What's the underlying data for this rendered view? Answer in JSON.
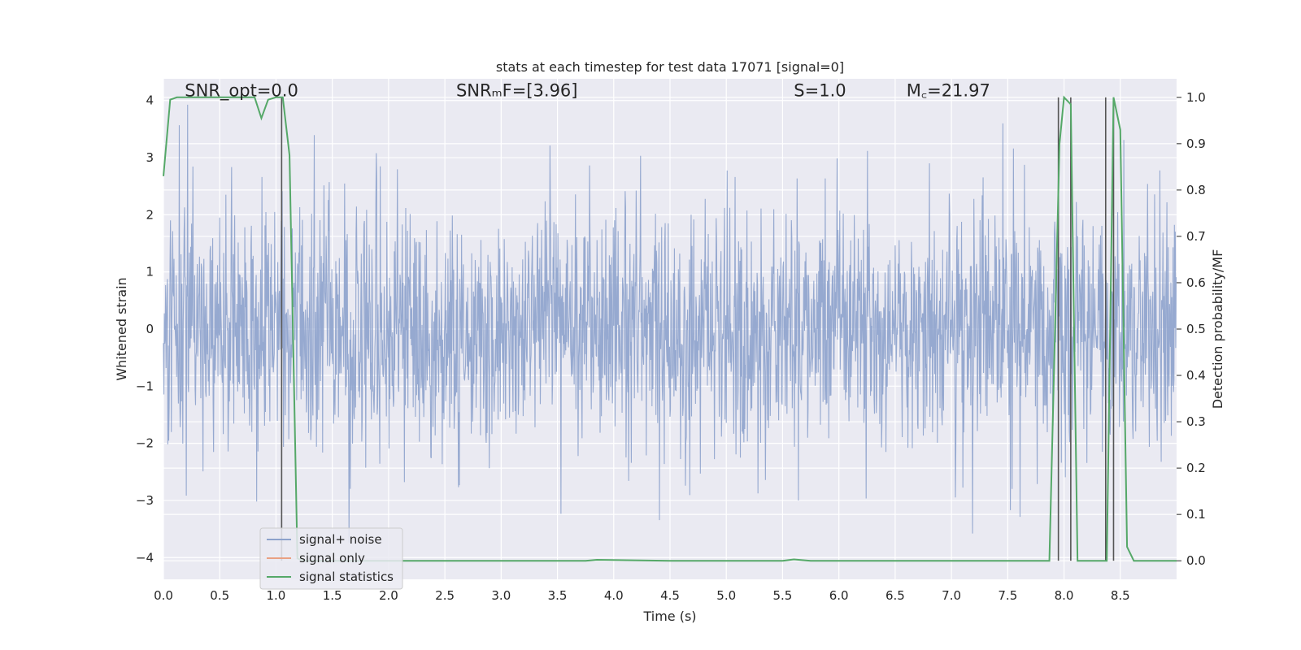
{
  "chart_data": {
    "type": "line",
    "title": "stats at each timestep for test data 17071 [signal=0]",
    "xlabel": "Time (s)",
    "ylabel_left": "Whitened strain",
    "ylabel_right": "Detection probability/MF",
    "xlim": [
      0,
      9.0
    ],
    "ylim_left": [
      -4.38,
      4.38
    ],
    "ylim_right": [
      -0.04,
      1.04
    ],
    "x_ticks": [
      "0.0",
      "0.5",
      "1.0",
      "1.5",
      "2.0",
      "2.5",
      "3.0",
      "3.5",
      "4.0",
      "4.5",
      "5.0",
      "5.5",
      "6.0",
      "6.5",
      "7.0",
      "7.5",
      "8.0",
      "8.5"
    ],
    "x_tick_values": [
      0,
      0.5,
      1,
      1.5,
      2,
      2.5,
      3,
      3.5,
      4,
      4.5,
      5,
      5.5,
      6,
      6.5,
      7,
      7.5,
      8,
      8.5
    ],
    "y_left_ticks": [
      "4",
      "3",
      "2",
      "1",
      "0",
      "−1",
      "−2",
      "−3",
      "−4"
    ],
    "y_left_tick_values": [
      4,
      3,
      2,
      1,
      0,
      -1,
      -2,
      -3,
      -4
    ],
    "y_right_ticks": [
      "1.0",
      "0.9",
      "0.8",
      "0.7",
      "0.6",
      "0.5",
      "0.4",
      "0.3",
      "0.2",
      "0.1",
      "0.0"
    ],
    "y_right_tick_values": [
      1,
      0.9,
      0.8,
      0.7,
      0.6,
      0.5,
      0.4,
      0.3,
      0.2,
      0.1,
      0
    ],
    "grid": true,
    "legend_position": "lower-left",
    "annotations": [
      {
        "id": "snr-opt",
        "text": "SNR_opt=0.0",
        "x": 0.19,
        "y": 4.1
      },
      {
        "id": "snr-mf",
        "text": "SNRₘF=[3.96]",
        "x": 2.6,
        "y": 4.1
      },
      {
        "id": "s-stat",
        "text": "S=1.0",
        "x": 5.6,
        "y": 4.1
      },
      {
        "id": "mchirp",
        "text": "M꜀=21.97",
        "x": 6.6,
        "y": 4.1
      }
    ],
    "series": [
      {
        "name": "signal+ noise",
        "color": "#8da2cc",
        "axis": "left",
        "kind": "noise",
        "t_range": [
          0,
          9.0
        ],
        "sample_rate": 256,
        "envelope_std": 1.05,
        "peak_max": 4.0,
        "peak_min": -4.0
      },
      {
        "name": "signal only",
        "color": "#e9a183",
        "axis": "left",
        "x": [],
        "y": []
      },
      {
        "name": "signal statistics",
        "color": "#55a868",
        "axis": "right",
        "x": [
          0.0,
          0.06,
          0.12,
          0.25,
          0.5,
          0.7,
          0.81,
          0.87,
          0.93,
          1.0,
          1.06,
          1.12,
          1.19,
          1.25,
          1.5,
          3.0,
          3.75,
          3.85,
          4.5,
          5.5,
          5.6,
          5.75,
          7.5,
          7.87,
          7.96,
          8.0,
          8.06,
          8.12,
          8.3,
          8.38,
          8.44,
          8.5,
          8.56,
          8.62,
          9.0
        ],
        "y": [
          0.83,
          0.995,
          1.0,
          1.0,
          1.0,
          1.0,
          1.0,
          0.955,
          0.995,
          1.0,
          1.0,
          0.875,
          0.005,
          0.0,
          0.0,
          0.0,
          0.0,
          0.002,
          0.0,
          0.0,
          0.003,
          0.0,
          0.0,
          0.0,
          0.9,
          1.0,
          0.985,
          0.0,
          0.0,
          0.0,
          1.0,
          0.93,
          0.03,
          0.0,
          0.0
        ]
      }
    ],
    "detection_lines": {
      "color": "#555555",
      "x": [
        1.05,
        7.95,
        8.06,
        8.37,
        8.44
      ],
      "y_top": 1.0,
      "y_bottom": 0.0
    }
  }
}
